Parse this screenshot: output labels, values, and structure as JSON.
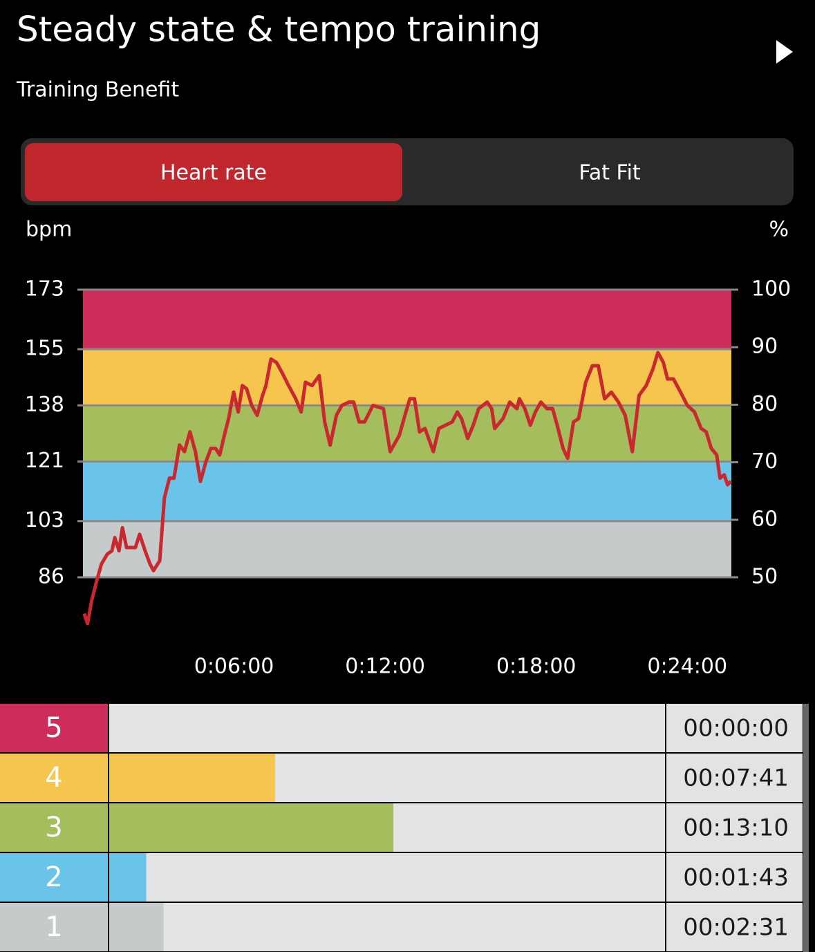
{
  "header": {
    "title": "Steady state & tempo training",
    "subtitle": "Training Benefit"
  },
  "tabs": {
    "items": [
      "Heart rate",
      "Fat Fit"
    ],
    "active": 0
  },
  "chart_data": {
    "type": "line",
    "y_label": "bpm",
    "y2_label": "%",
    "xlim": [
      0,
      1545
    ],
    "xticks": [
      {
        "value": 360,
        "label": "0:06:00"
      },
      {
        "value": 720,
        "label": "0:12:00"
      },
      {
        "value": 1080,
        "label": "0:18:00"
      },
      {
        "value": 1440,
        "label": "0:24:00"
      }
    ],
    "ylim": [
      86,
      173
    ],
    "yticks": [
      86,
      103,
      121,
      138,
      155,
      173
    ],
    "y2lim": [
      50,
      100
    ],
    "y2ticks": [
      50,
      60,
      70,
      80,
      90,
      100
    ],
    "band_colors": [
      "#c5cbca",
      "#6ac3e8",
      "#a4bd5d",
      "#f6c54e",
      "#cd2d5a"
    ],
    "grid": true,
    "x": [
      3,
      11,
      21,
      33,
      44,
      58,
      69,
      76,
      86,
      94,
      104,
      115,
      125,
      135,
      148,
      160,
      168,
      183,
      194,
      206,
      217,
      230,
      242,
      255,
      268,
      280,
      293,
      305,
      316,
      326,
      337,
      347,
      359,
      370,
      380,
      390,
      402,
      415,
      428,
      436,
      448,
      461,
      474,
      490,
      507,
      520,
      530,
      546,
      563,
      576,
      589,
      604,
      617,
      634,
      645,
      658,
      671,
      691,
      716,
      732,
      754,
      765,
      779,
      790,
      802,
      815,
      835,
      848,
      864,
      880,
      892,
      902,
      917,
      930,
      943,
      963,
      974,
      981,
      1001,
      1017,
      1034,
      1040,
      1053,
      1066,
      1078,
      1091,
      1106,
      1119,
      1132,
      1144,
      1155,
      1169,
      1181,
      1198,
      1214,
      1228,
      1243,
      1259,
      1276,
      1292,
      1309,
      1325,
      1342,
      1358,
      1370,
      1383,
      1393,
      1407,
      1424,
      1440,
      1457,
      1473,
      1485,
      1497,
      1510,
      1518,
      1528,
      1536,
      1544
    ],
    "series": [
      {
        "name": "Heart rate",
        "color": "#c8282e",
        "values": [
          75,
          72,
          79,
          85,
          90,
          93,
          94,
          98,
          94,
          101,
          95,
          95,
          95,
          99,
          94,
          90,
          88,
          91,
          110,
          116,
          116,
          126,
          124,
          130,
          124,
          115,
          121,
          125,
          125,
          123,
          129,
          134,
          142,
          136,
          144,
          143,
          138,
          135,
          141,
          144,
          152,
          151,
          148,
          144,
          140,
          136,
          145,
          144,
          147,
          133,
          126,
          135,
          138,
          139,
          139,
          133,
          133,
          138,
          137,
          124,
          129,
          134,
          140,
          140,
          130,
          131,
          124,
          131,
          132,
          133,
          136,
          134,
          128,
          132,
          137,
          139,
          137,
          131,
          134,
          139,
          137,
          140,
          137,
          132,
          136,
          139,
          137,
          137,
          131,
          125,
          122,
          133,
          134,
          145,
          150,
          150,
          140,
          142,
          139,
          135,
          124,
          141,
          144,
          149,
          154,
          151,
          146,
          146,
          142,
          138,
          136,
          131,
          130,
          125,
          123,
          116,
          117,
          114,
          115
        ]
      }
    ]
  },
  "zones": {
    "labels": [
      "5",
      "4",
      "3",
      "2",
      "1"
    ],
    "values": [
      0,
      461,
      790,
      103,
      151
    ],
    "value_labels": [
      "00:00:00",
      "00:07:41",
      "00:13:10",
      "00:01:43",
      "00:02:31"
    ],
    "colors": [
      "#cd2d5a",
      "#f6c54e",
      "#a4bd5d",
      "#6ac3e8",
      "#c5cbca"
    ],
    "xlim": [
      0,
      1545
    ]
  }
}
